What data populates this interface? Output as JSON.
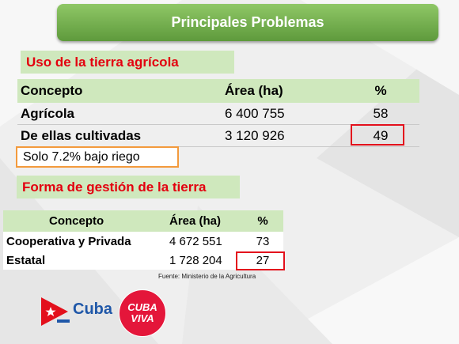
{
  "title": "Principales Problemas",
  "section1": {
    "label": "Uso de la tierra agrícola",
    "headers": [
      "Concepto",
      "Área (ha)",
      "%"
    ],
    "rows": [
      {
        "concepto": "Agrícola",
        "area": "6 400 755",
        "pct": "58"
      },
      {
        "concepto": "De ellas cultivadas",
        "area": "3 120 926",
        "pct": "49"
      }
    ],
    "note": "Solo 7.2% bajo riego"
  },
  "section2": {
    "label": "Forma de gestión de la tierra",
    "headers": [
      "Concepto",
      "Área (ha)",
      "%"
    ],
    "rows": [
      {
        "concepto": "Cooperativa y Privada",
        "area": "4 672 551",
        "pct": "73"
      },
      {
        "concepto": "Estatal",
        "area": "1 728 204",
        "pct": "27"
      }
    ]
  },
  "source": "Fuente:  Ministerio de la Agricultura",
  "logos": {
    "cuba": "Cuba",
    "cuba_viva_line1": "CUBA",
    "cuba_viva_line2": "VIVA"
  },
  "colors": {
    "accent_green": "#8fc766",
    "header_green": "#cfe8bd",
    "label_red": "#e3000f",
    "highlight_orange": "#f39a3c",
    "cuba_blue": "#1f57a8",
    "viva_red": "#e4163a"
  },
  "icons": [
    "cuba-flag-icon",
    "cuba-viva-logo-icon"
  ]
}
